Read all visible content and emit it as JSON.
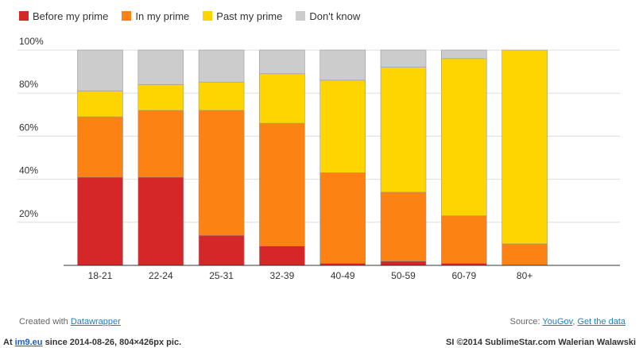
{
  "chart_data": {
    "type": "bar",
    "stacked": true,
    "categories": [
      "18-21",
      "22-24",
      "25-31",
      "32-39",
      "40-49",
      "50-59",
      "60-79",
      "80+"
    ],
    "series": [
      {
        "name": "Before my prime",
        "color": "#d62728",
        "values": [
          41,
          41,
          14,
          9,
          1,
          2,
          1,
          0
        ]
      },
      {
        "name": "In my prime",
        "color": "#fc8214",
        "values": [
          28,
          31,
          58,
          57,
          42,
          32,
          22,
          10
        ]
      },
      {
        "name": "Past my prime",
        "color": "#ffd500",
        "values": [
          12,
          12,
          13,
          23,
          43,
          58,
          73,
          90
        ]
      },
      {
        "name": "Don't know",
        "color": "#cccccc",
        "values": [
          19,
          16,
          15,
          11,
          14,
          8,
          4,
          0
        ]
      }
    ],
    "ylim": [
      0,
      100
    ],
    "yticks": [
      "20%",
      "40%",
      "60%",
      "80%",
      "100%"
    ],
    "ytick_values": [
      20,
      40,
      60,
      80,
      100
    ],
    "grid": true,
    "legend": "top-left",
    "title": "",
    "xlabel": "",
    "ylabel": ""
  },
  "footer": {
    "created_with": "Created with",
    "datawrapper": "Datawrapper",
    "source_label": "Source:",
    "source_link": "YouGov",
    "separator": ",",
    "get_data": "Get the data"
  },
  "watermark": {
    "prefix": "At",
    "site": "im9.eu",
    "suffix": "since 2014-08-26, 804×426px pic.",
    "right": "SI ©2014 SublimeStar.com Walerian Walawski"
  }
}
